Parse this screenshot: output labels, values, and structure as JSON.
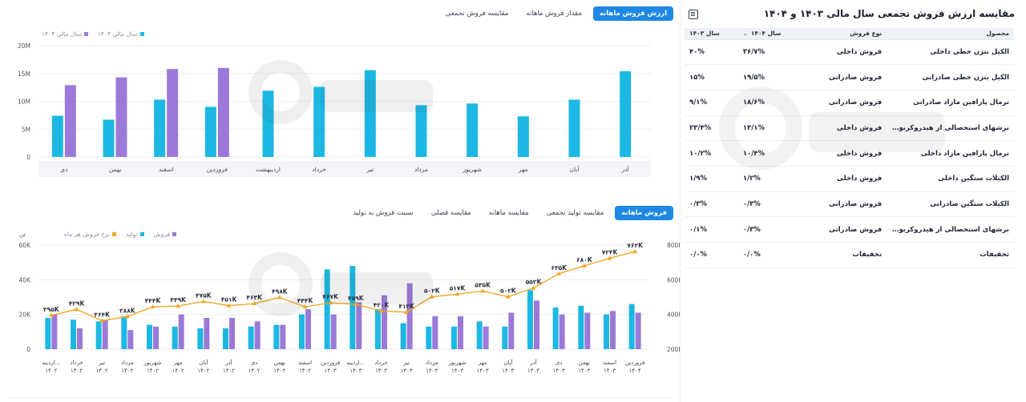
{
  "colors": {
    "accent": "#1e88e5",
    "bar_cyan": "#1cb8e3",
    "bar_purple": "#9b79d8",
    "line_orange": "#f5a623",
    "grid": "#eceef3"
  },
  "top_tabs": [
    {
      "label": "ارزش فروش ماهانه",
      "active": true
    },
    {
      "label": "مقدار فروش ماهانه",
      "active": false
    },
    {
      "label": "مقایسه فروش تجمعی",
      "active": false
    }
  ],
  "chart1_legend": [
    {
      "label": "سال مالی ۱۴۰۳",
      "color": "#1cb8e3"
    },
    {
      "label": "سال مالی ۱۴۰۴",
      "color": "#9b79d8"
    }
  ],
  "bottom_tabs": [
    {
      "label": "فروش ماهانه",
      "active": true
    },
    {
      "label": "مقایسه تولید تجمعی",
      "active": false
    },
    {
      "label": "مقایسه ماهانه",
      "active": false
    },
    {
      "label": "مقایسه فصلی",
      "active": false
    },
    {
      "label": "نسبت فروش به تولید",
      "active": false
    }
  ],
  "chart2_legend": [
    {
      "label": "فروش",
      "color": "#9b79d8"
    },
    {
      "label": "تولید",
      "color": "#1cb8e3"
    },
    {
      "label": "نرخ فروش هر ماه",
      "color": "#f5a623"
    }
  ],
  "chart2_unit": "تن",
  "right_panel": {
    "title": "مقایسه ارزش فروش تجمعی سال مالی ۱۴۰۳ و ۱۴۰۴",
    "columns": [
      "محصول",
      "نوع فروش",
      "سال ۱۴۰۴",
      "سال ۱۴۰۳"
    ],
    "rows": [
      {
        "product": "الکیل بنزن خطی داخلی",
        "type": "فروش داخلی",
        "y1404": "۳۶/۷%",
        "y1403": "۴۰%"
      },
      {
        "product": "الکیل بنزن خطی صادراتی",
        "type": "فروش صادراتی",
        "y1404": "۱۹/۵%",
        "y1403": "۱۵%"
      },
      {
        "product": "نرمال پارافین مازاد صادراتی",
        "type": "فروش صادراتی",
        "y1404": "۱۸/۶%",
        "y1403": "۹/۱%"
      },
      {
        "product": "برشهای استحصالی از هیدروکربور...",
        "type": "فروش داخلی",
        "y1404": "۱۳/۱%",
        "y1403": "۲۳/۴%"
      },
      {
        "product": "نرمال پارافین مازاد داخلی",
        "type": "فروش داخلی",
        "y1404": "۱۰/۴%",
        "y1403": "۱۰/۲%"
      },
      {
        "product": "الکیلات سنگین داخلی",
        "type": "فروش داخلی",
        "y1404": "۱/۲%",
        "y1403": "۱/۹%"
      },
      {
        "product": "الکیلات سنگین صادراتی",
        "type": "فروش صادراتی",
        "y1404": "۰/۳%",
        "y1403": "۰/۳%"
      },
      {
        "product": "برشهای استحصالی از هیدروکربور...",
        "type": "فروش صادراتی",
        "y1404": "۰/۳%",
        "y1403": "۰/۱%"
      },
      {
        "product": "تخفیفات",
        "type": "تخفیفات",
        "y1404": "۰/۰%",
        "y1403": "۰/۰%"
      }
    ]
  },
  "chart_data": [
    {
      "type": "bar",
      "ylim": [
        0,
        20000000
      ],
      "y_ticks": [
        "0",
        "5M",
        "10M",
        "15M",
        "20M"
      ],
      "categories": [
        "دی",
        "بهمن",
        "اسفند",
        "فروردین",
        "اردیبهشت",
        "خرداد",
        "تیر",
        "مرداد",
        "شهریور",
        "مهر",
        "آبان",
        "آذر"
      ],
      "series": [
        {
          "name": "سال مالی ۱۴۰۳",
          "values": [
            7.4,
            6.7,
            10.3,
            9.0,
            11.9,
            12.6,
            15.6,
            9.3,
            9.6,
            7.3,
            10.3,
            15.4
          ]
        },
        {
          "name": "سال مالی ۱۴۰۴",
          "values": [
            12.9,
            14.3,
            15.8,
            16.0,
            null,
            null,
            null,
            null,
            null,
            null,
            null,
            null
          ]
        }
      ],
      "units": "M"
    },
    {
      "type": "bar",
      "categories": [
        "اردیبهشت ۱۴۰۲",
        "خرداد ۱۴۰۲",
        "تیر ۱۴۰۲",
        "مرداد ۱۴۰۲",
        "شهریور ۱۴۰۲",
        "مهر ۱۴۰۲",
        "آبان ۱۴۰۲",
        "آذر ۱۴۰۲",
        "دی ۱۴۰۲",
        "بهمن ۱۴۰۲",
        "اسفند ۱۴۰۲",
        "فروردین ۱۴۰۳",
        "اردیبهشت ۱۴۰۳",
        "خرداد ۱۴۰۳",
        "تیر ۱۴۰۳",
        "مرداد ۱۴۰۳",
        "شهریور ۱۴۰۳",
        "مهر ۱۴۰۳",
        "آبان ۱۴۰۳",
        "آذر ۱۴۰۳",
        "دی ۱۴۰۳",
        "بهمن ۱۴۰۳",
        "اسفند ۱۴۰۳",
        "فروردین ۱۴۰۴"
      ],
      "category_lines": [
        [
          "اردیبه...",
          "۱۴۰۲"
        ],
        [
          "خرداد",
          "۱۴۰۲"
        ],
        [
          "تیر",
          "۱۴۰۲"
        ],
        [
          "مرداد",
          "۱۴۰۲"
        ],
        [
          "شهریور",
          "۱۴۰۲"
        ],
        [
          "مهر",
          "۱۴۰۲"
        ],
        [
          "آبان",
          "۱۴۰۲"
        ],
        [
          "آذر",
          "۱۴۰۲"
        ],
        [
          "دی",
          "۱۴۰۲"
        ],
        [
          "بهمن",
          "۱۴۰۲"
        ],
        [
          "اسفند",
          "۱۴۰۲"
        ],
        [
          "فروردین",
          "۱۴۰۳"
        ],
        [
          "اردیبه...",
          "۱۴۰۳"
        ],
        [
          "خرداد",
          "۱۴۰۳"
        ],
        [
          "تیر",
          "۱۴۰۳"
        ],
        [
          "مرداد",
          "۱۴۰۳"
        ],
        [
          "شهریور",
          "۱۴۰۳"
        ],
        [
          "مهر",
          "۱۴۰۳"
        ],
        [
          "آبان",
          "۱۴۰۳"
        ],
        [
          "آذر",
          "۱۴۰۳"
        ],
        [
          "دی",
          "۱۴۰۳"
        ],
        [
          "بهمن",
          "۱۴۰۳"
        ],
        [
          "اسفند",
          "۱۴۰۳"
        ],
        [
          "فروردین",
          "۱۴۰۴"
        ]
      ],
      "left_axis": {
        "ticks": [
          "0",
          "20K",
          "40K",
          "60K"
        ],
        "ylim": [
          0,
          60000
        ]
      },
      "right_axis": {
        "ticks": [
          "200K",
          "400K",
          "600K",
          "800K"
        ],
        "ylim": [
          200000,
          800000
        ]
      },
      "series": [
        {
          "name": "تولید",
          "axis": "left",
          "values": [
            18,
            17,
            16,
            19,
            14,
            13,
            12,
            12,
            13,
            14,
            20,
            46,
            48,
            23,
            15,
            13,
            13,
            16,
            13,
            34,
            24,
            25,
            20,
            26
          ]
        },
        {
          "name": "فروش",
          "axis": "left",
          "values": [
            20,
            12,
            17,
            11,
            13,
            20,
            18,
            18,
            16,
            14,
            23,
            20,
            27,
            31,
            38,
            19,
            19,
            13,
            21,
            28,
            20,
            21,
            22,
            21
          ]
        },
        {
          "name": "نرخ فروش هر ماه",
          "axis": "right",
          "values": [
            395,
            429,
            364,
            388,
            444,
            449,
            475,
            451,
            463,
            498,
            444,
            467,
            459,
            420,
            413,
            502,
            517,
            535,
            502,
            552,
            635,
            680,
            724,
            762
          ]
        }
      ],
      "line_labels": [
        "۳۹۵K",
        "۴۲۹K",
        "۳۶۴K",
        "۳۸۸K",
        "۴۴۴K",
        "۴۴۹K",
        "۴۷۵K",
        "۴۵۱K",
        "۴۶۳K",
        "۴۹۸K",
        "۴۴۴K",
        "۴۶۷K",
        "۴۵۹K",
        "۴۲۰K",
        "۴۱۳K",
        "۵۰۲K",
        "۵۱۷K",
        "۵۳۵K",
        "۵۰۲K",
        "۵۵۲K",
        "۶۳۵K",
        "۶۸۰K",
        "۷۲۴K",
        "۷۶۲K"
      ]
    }
  ]
}
